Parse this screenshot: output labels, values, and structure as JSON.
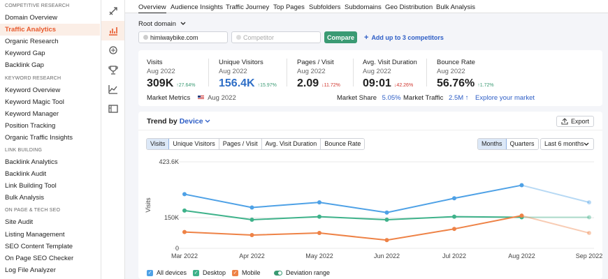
{
  "sidebar": {
    "sections": [
      {
        "title": "COMPETITIVE RESEARCH",
        "items": [
          "Domain Overview",
          "Traffic Analytics",
          "Organic Research",
          "Keyword Gap",
          "Backlink Gap"
        ]
      },
      {
        "title": "KEYWORD RESEARCH",
        "items": [
          "Keyword Overview",
          "Keyword Magic Tool",
          "Keyword Manager",
          "Position Tracking",
          "Organic Traffic Insights"
        ]
      },
      {
        "title": "LINK BUILDING",
        "items": [
          "Backlink Analytics",
          "Backlink Audit",
          "Link Building Tool",
          "Bulk Analysis"
        ]
      },
      {
        "title": "ON PAGE & TECH SEO",
        "items": [
          "Site Audit",
          "Listing Management",
          "SEO Content Template",
          "On Page SEO Checker",
          "Log File Analyzer"
        ]
      }
    ],
    "active": "Traffic Analytics"
  },
  "rail": [
    "seo-toolkit-icon",
    "bar-chart-icon",
    "megaphone-icon",
    "trophy-icon",
    "line-chart-icon",
    "media-icon"
  ],
  "tabs": [
    "Overview",
    "Audience Insights",
    "Traffic Journey",
    "Top Pages",
    "Subfolders",
    "Subdomains",
    "Geo Distribution",
    "Bulk Analysis"
  ],
  "domain": {
    "root_label": "Root domain",
    "value": "himiwaybike.com",
    "competitor_placeholder": "Competitor",
    "compare_label": "Compare",
    "add_label": "Add up to 3 competitors"
  },
  "metrics": [
    {
      "title": "Visits",
      "date": "Aug 2022",
      "value": "309K",
      "change": "27.64%",
      "dir": "up"
    },
    {
      "title": "Unique Visitors",
      "date": "Aug 2022",
      "value": "156.4K",
      "change": "15.97%",
      "dir": "up"
    },
    {
      "title": "Pages / Visit",
      "date": "Aug 2022",
      "value": "2.09",
      "change": "11.72%",
      "dir": "down"
    },
    {
      "title": "Avg. Visit Duration",
      "date": "Aug 2022",
      "value": "09:01",
      "change": "42.26%",
      "dir": "down"
    },
    {
      "title": "Bounce Rate",
      "date": "Aug 2022",
      "value": "56.76%",
      "change": "1.72%",
      "dir": "up"
    }
  ],
  "market": {
    "label": "Market Metrics",
    "date": "Aug 2022",
    "share_label": "Market Share",
    "share_value": "5.05%",
    "traffic_label": "Market Traffic",
    "traffic_value": "2.5M",
    "explore_label": "Explore your market"
  },
  "trend": {
    "title_prefix": "Trend by",
    "by": "Device",
    "export_label": "Export",
    "metric_tabs": [
      "Visits",
      "Unique Visitors",
      "Pages / Visit",
      "Avg. Visit Duration",
      "Bounce Rate"
    ],
    "period_tabs": [
      "Months",
      "Quarters"
    ],
    "range_label": "Last 6 months",
    "legend": [
      "All devices",
      "Desktop",
      "Mobile",
      "Deviation range"
    ]
  },
  "chart_data": {
    "type": "line",
    "x": [
      "Mar 2022",
      "Apr 2022",
      "May 2022",
      "Jun 2022",
      "Jul 2022",
      "Aug 2022",
      "Sep 2022"
    ],
    "ylabel": "Visits",
    "yticks": [
      "423.6K",
      "150K",
      "0"
    ],
    "ylim": [
      0,
      423600
    ],
    "series": [
      {
        "name": "All devices",
        "color": "#4ea1e6",
        "values": [
          265000,
          200000,
          225000,
          175000,
          245000,
          309000,
          225000
        ],
        "forecast_last": true
      },
      {
        "name": "Desktop",
        "color": "#3eb28a",
        "values": [
          185000,
          140000,
          155000,
          140000,
          155000,
          152000,
          152000
        ],
        "forecast_last": true
      },
      {
        "name": "Mobile",
        "color": "#ee8246",
        "values": [
          80000,
          65000,
          75000,
          40000,
          95000,
          160000,
          75000
        ],
        "forecast_last": true
      }
    ]
  }
}
